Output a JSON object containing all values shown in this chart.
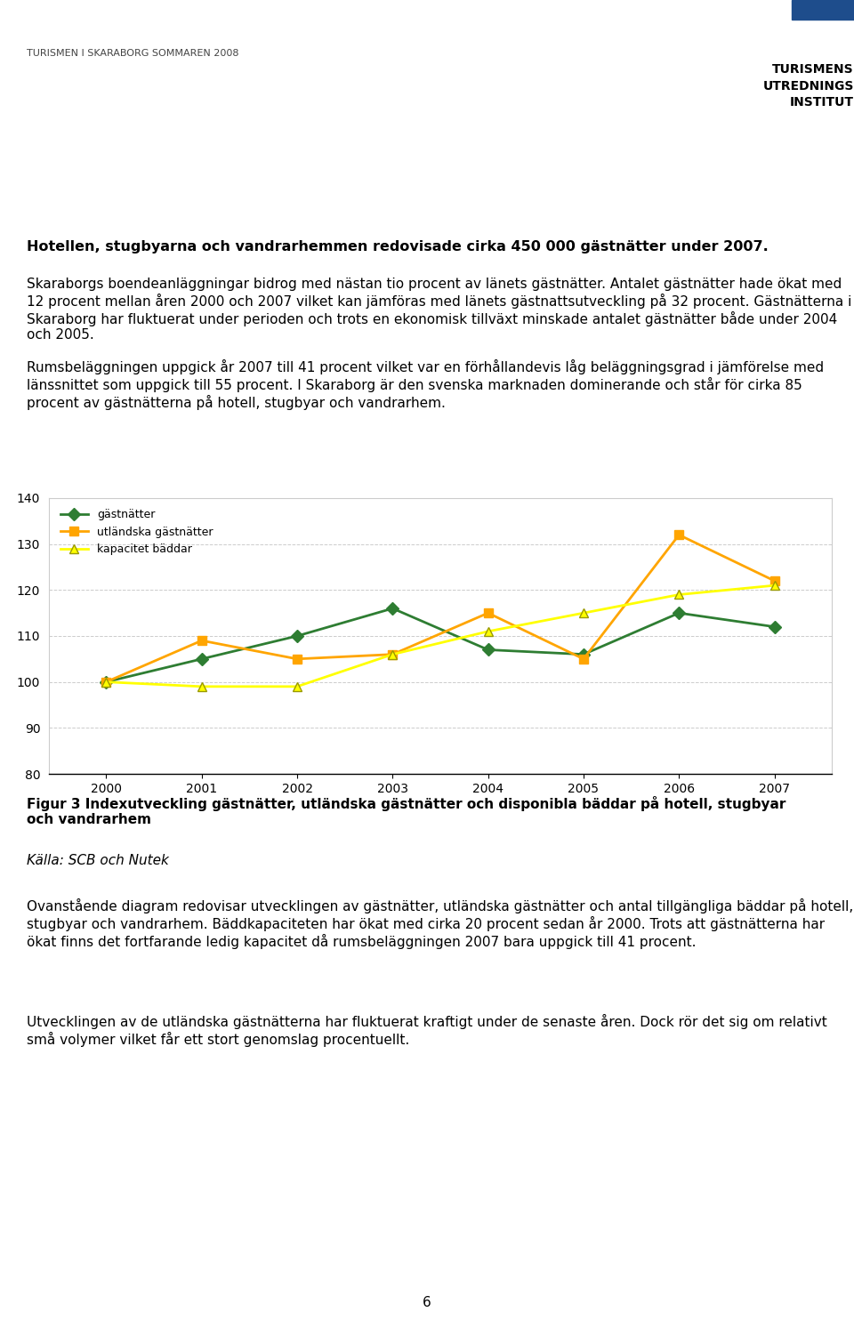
{
  "years": [
    2000,
    2001,
    2002,
    2003,
    2004,
    2005,
    2006,
    2007
  ],
  "gastnatter": [
    100,
    105,
    110,
    116,
    107,
    106,
    115,
    112
  ],
  "utlandska_gastnatter": [
    100,
    109,
    105,
    106,
    115,
    105,
    132,
    122
  ],
  "kapacitet_baddar": [
    100,
    99,
    99,
    106,
    111,
    115,
    119,
    121
  ],
  "gastnatter_color": "#2e7d32",
  "utlandska_color": "#FFA500",
  "kapacitet_color": "#FFFF00",
  "kapacitet_edge_color": "#999900",
  "legend_gastnatter": "gästnätter",
  "legend_utlandska": "utländska gästnätter",
  "legend_kapacitet": "kapacitet bäddar",
  "ylim_min": 80,
  "ylim_max": 140,
  "yticks": [
    80,
    90,
    100,
    110,
    120,
    130,
    140
  ],
  "header_text": "TURISMEN I SKARABORG SOMMAREN 2008",
  "para1": "Hotellen, stugbyarna och vandrarhemmen redovisade cirka 450 000 gästnätter under 2007.",
  "para2": "Skaraborgs boendeanläggningar bidrog med nästan tio procent av länets gästnätter. Antalet gästnätter hade ökat med 12 procent mellan åren 2000 och 2007 vilket kan jämföras med länets gästnattsutveckling på 32 procent. Gästnätterna i Skaraborg har fluktuerat under perioden och trots en ekonomisk tillväxt minskade antalet gästnätter både under 2004 och 2005.",
  "para3": "Rumsbeläggningen uppgick år 2007 till 41 procent vilket var en förhållandevis låg beläggningsgrad i jämförelse med länssnittet som uppgick till 55 procent. I Skaraborg är den svenska marknaden dominerande och står för cirka 85 procent av gästnätterna på hotell, stugbyar och vandrarhem.",
  "fig_caption_bold": "Figur 3 Indexutveckling gästnätter, utländska gästnätter och disponibla bäddar på hotell, stugbyar\noch vandrarhem",
  "fig_source": "Källa: SCB och Nutek",
  "para5": "Ovanstående diagram redovisar utvecklingen av gästnätter, utländska gästnätter och antal tillgängliga bäddar på hotell, stugbyar och vandrarhem. Bäddkapaciteten har ökat med cirka 20 procent sedan år 2000. Trots att gästnätterna har ökat finns det fortfarande ledig kapacitet då rumsbeläggningen 2007 bara uppgick till 41 procent.",
  "para6": "Utvecklingen av de utländska gästnätterna har fluktuerat kraftigt under de senaste åren. Dock rör det sig om relativt små volymer vilket får ett stort genomslag procentuellt.",
  "page_number": "6",
  "background_color": "#ffffff",
  "grid_color": "#cccccc",
  "header_bar_color": "#8dc63f",
  "header_bar_blue": "#1e4d8c",
  "line_width": 2.0,
  "marker_size": 7
}
